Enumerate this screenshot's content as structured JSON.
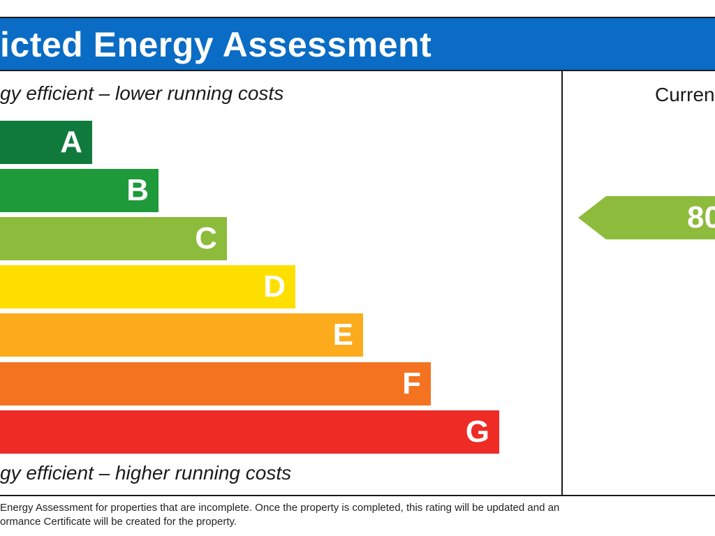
{
  "header": {
    "title": "icted Energy Assessment",
    "background": "#0a6cc4"
  },
  "captions": {
    "top": "gy efficient – lower running costs",
    "bottom": "gy efficient – higher running costs"
  },
  "bands": [
    {
      "letter": "A",
      "color": "#0f7a3c"
    },
    {
      "letter": "B",
      "color": "#1e9a3a"
    },
    {
      "letter": "C",
      "color": "#8dbb3c"
    },
    {
      "letter": "D",
      "color": "#ffdf00"
    },
    {
      "letter": "E",
      "color": "#fbab1c"
    },
    {
      "letter": "F",
      "color": "#f47321"
    },
    {
      "letter": "G",
      "color": "#ee2b24"
    }
  ],
  "current": {
    "label": "Curren",
    "value": "80",
    "arrow_color": "#8dbb3c"
  },
  "footnote": {
    "line1": "Energy Assessment for properties that are incomplete. Once the property is completed, this rating will be updated and an",
    "line2": "ormance Certificate will be created for the property."
  }
}
